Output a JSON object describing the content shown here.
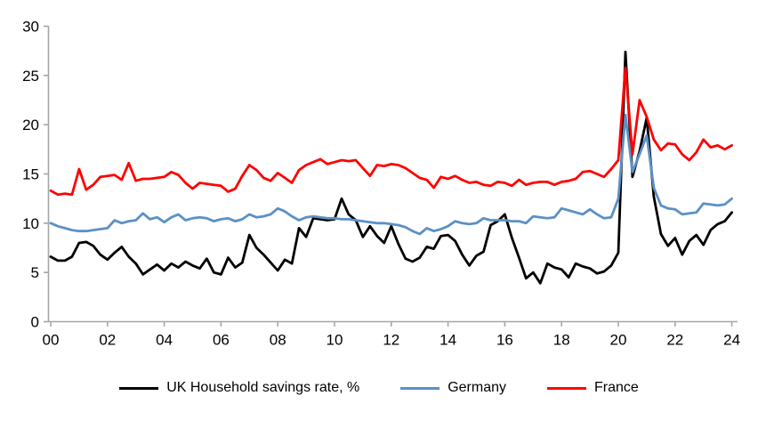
{
  "chart_data": {
    "type": "line",
    "title": "",
    "xlabel": "",
    "ylabel": "",
    "ylim": [
      0,
      30
    ],
    "yticks": [
      0,
      5,
      10,
      15,
      20,
      25,
      30
    ],
    "xticks": [
      "00",
      "02",
      "04",
      "06",
      "08",
      "10",
      "12",
      "14",
      "16",
      "18",
      "20",
      "22",
      "24"
    ],
    "grid": false,
    "legend_position": "bottom-center",
    "axis_color": "#a6a6a6",
    "x_start": 2000,
    "x_step_years": 0.25,
    "series": [
      {
        "id": "uk",
        "name": "UK Household savings rate, %",
        "color": "#000000",
        "values": [
          6.6,
          6.2,
          6.2,
          6.6,
          8.0,
          8.1,
          7.7,
          6.8,
          6.3,
          7.0,
          7.6,
          6.6,
          5.9,
          4.8,
          5.3,
          5.8,
          5.2,
          5.9,
          5.5,
          6.1,
          5.7,
          5.4,
          6.4,
          5.0,
          4.8,
          6.5,
          5.5,
          6.0,
          8.8,
          7.5,
          6.8,
          6.0,
          5.2,
          6.3,
          5.9,
          9.5,
          8.6,
          10.5,
          10.4,
          10.3,
          10.4,
          12.5,
          10.9,
          10.3,
          8.6,
          9.7,
          8.7,
          8.0,
          9.7,
          7.9,
          6.4,
          6.1,
          6.5,
          7.6,
          7.4,
          8.7,
          8.8,
          8.2,
          6.8,
          5.7,
          6.7,
          7.1,
          9.8,
          10.2,
          10.9,
          8.5,
          6.5,
          4.4,
          5.0,
          3.9,
          5.9,
          5.5,
          5.3,
          4.5,
          5.9,
          5.6,
          5.4,
          4.9,
          5.1,
          5.7,
          7.0,
          27.4,
          14.7,
          17.3,
          20.7,
          12.7,
          8.9,
          7.7,
          8.5,
          6.8,
          8.2,
          8.8,
          7.8,
          9.3,
          9.9,
          10.2,
          11.1
        ]
      },
      {
        "id": "germany",
        "name": "Germany",
        "color": "#5b90c5",
        "values": [
          10.0,
          9.7,
          9.5,
          9.3,
          9.2,
          9.2,
          9.3,
          9.4,
          9.5,
          10.3,
          10.0,
          10.2,
          10.3,
          11.0,
          10.4,
          10.6,
          10.1,
          10.6,
          10.9,
          10.3,
          10.5,
          10.6,
          10.5,
          10.2,
          10.4,
          10.5,
          10.2,
          10.4,
          10.9,
          10.6,
          10.7,
          10.9,
          11.5,
          11.2,
          10.7,
          10.3,
          10.6,
          10.7,
          10.6,
          10.5,
          10.5,
          10.4,
          10.4,
          10.3,
          10.2,
          10.1,
          10.0,
          10.0,
          9.9,
          9.8,
          9.6,
          9.2,
          8.9,
          9.5,
          9.2,
          9.4,
          9.7,
          10.2,
          10.0,
          9.9,
          10.0,
          10.5,
          10.3,
          10.3,
          10.3,
          10.2,
          10.2,
          10.0,
          10.7,
          10.6,
          10.5,
          10.6,
          11.5,
          11.3,
          11.1,
          10.9,
          11.4,
          10.9,
          10.5,
          10.6,
          12.5,
          21.0,
          15.2,
          17.0,
          18.9,
          13.6,
          11.8,
          11.5,
          11.4,
          10.9,
          11.0,
          11.1,
          12.0,
          11.9,
          11.8,
          11.9,
          12.5
        ]
      },
      {
        "id": "france",
        "name": "France",
        "color": "#ff0000",
        "values": [
          13.3,
          12.9,
          13.0,
          12.9,
          15.5,
          13.4,
          13.9,
          14.7,
          14.8,
          14.9,
          14.4,
          16.1,
          14.3,
          14.5,
          14.5,
          14.6,
          14.7,
          15.2,
          14.9,
          14.1,
          13.5,
          14.1,
          14.0,
          13.9,
          13.8,
          13.2,
          13.5,
          14.8,
          15.9,
          15.4,
          14.6,
          14.3,
          15.1,
          14.6,
          14.1,
          15.4,
          15.9,
          16.2,
          16.5,
          16.0,
          16.2,
          16.4,
          16.3,
          16.4,
          15.6,
          14.8,
          15.9,
          15.8,
          16.0,
          15.9,
          15.6,
          15.1,
          14.6,
          14.4,
          13.6,
          14.7,
          14.5,
          14.8,
          14.4,
          14.1,
          14.2,
          13.9,
          13.8,
          14.2,
          14.1,
          13.8,
          14.4,
          13.9,
          14.1,
          14.2,
          14.2,
          13.9,
          14.2,
          14.3,
          14.5,
          15.2,
          15.3,
          15.0,
          14.7,
          15.5,
          16.4,
          25.8,
          17.0,
          22.5,
          20.8,
          18.5,
          17.4,
          18.1,
          18.0,
          17.0,
          16.4,
          17.2,
          18.5,
          17.7,
          17.9,
          17.5,
          17.9
        ]
      }
    ]
  }
}
